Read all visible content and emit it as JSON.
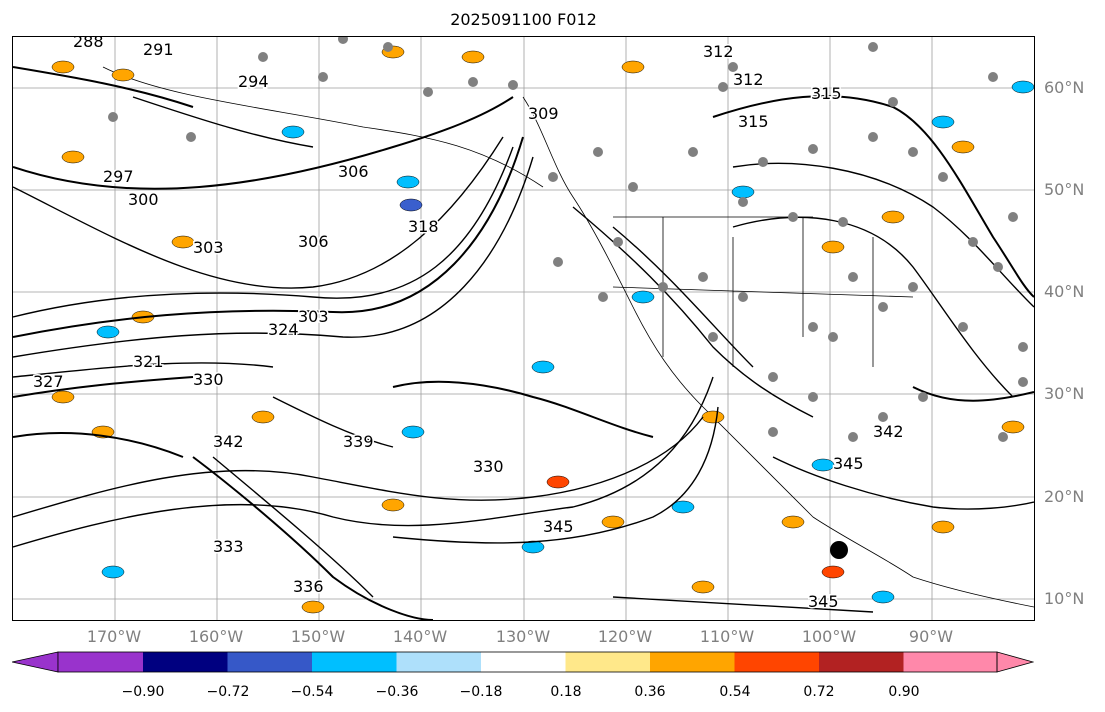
{
  "title": "2025091100 F012",
  "map": {
    "lat_labels": [
      "60°N",
      "50°N",
      "40°N",
      "30°N",
      "20°N",
      "10°N"
    ],
    "lon_labels": [
      "170°W",
      "160°W",
      "150°W",
      "140°W",
      "130°W",
      "120°W",
      "110°W",
      "100°W",
      "90°W"
    ],
    "contour_labels": [
      "288",
      "291",
      "294",
      "297",
      "300",
      "303",
      "306",
      "306",
      "303",
      "309",
      "312",
      "312",
      "315",
      "315",
      "318",
      "321",
      "324",
      "327",
      "330",
      "330",
      "333",
      "336",
      "339",
      "342",
      "342",
      "345",
      "345",
      "345"
    ],
    "colors": {
      "contour": "#000000",
      "coastline": "#000000",
      "grid": "#9e9e9e",
      "station_dot": "#808080",
      "positive_low": "#ffa500",
      "positive_high": "#ff4500",
      "negative_low": "#00bfff",
      "negative_high": "#3a5fcd"
    }
  },
  "colorbar": {
    "segments": [
      {
        "color": "#9933cc"
      },
      {
        "color": "#000080"
      },
      {
        "color": "#3658c8"
      },
      {
        "color": "#00bfff"
      },
      {
        "color": "#aee0fb"
      },
      {
        "color": "#ffffff"
      },
      {
        "color": "#ffe88a"
      },
      {
        "color": "#ffa500"
      },
      {
        "color": "#ff4500"
      },
      {
        "color": "#b22222"
      },
      {
        "color": "#ff88aa"
      }
    ],
    "tick_labels": [
      "−0.90",
      "−0.72",
      "−0.54",
      "−0.36",
      "−0.18",
      "0.18",
      "0.36",
      "0.54",
      "0.72",
      "0.90"
    ]
  }
}
